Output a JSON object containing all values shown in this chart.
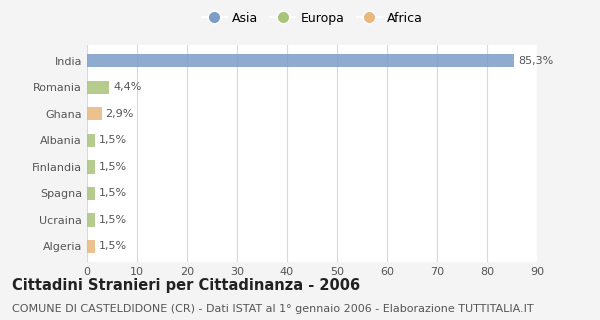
{
  "categories": [
    "India",
    "Romania",
    "Ghana",
    "Albania",
    "Finlandia",
    "Spagna",
    "Ucraina",
    "Algeria"
  ],
  "values": [
    85.3,
    4.4,
    2.9,
    1.5,
    1.5,
    1.5,
    1.5,
    1.5
  ],
  "labels": [
    "85,3%",
    "4,4%",
    "2,9%",
    "1,5%",
    "1,5%",
    "1,5%",
    "1,5%",
    "1,5%"
  ],
  "colors": [
    "#7b9dc7",
    "#a8c47a",
    "#e8b87c",
    "#a8c47a",
    "#a8c47a",
    "#a8c47a",
    "#a8c47a",
    "#e8b87c"
  ],
  "legend_labels": [
    "Asia",
    "Europa",
    "Africa"
  ],
  "legend_colors": [
    "#7b9dc7",
    "#a8c47a",
    "#e8b87c"
  ],
  "title": "Cittadini Stranieri per Cittadinanza - 2006",
  "subtitle": "COMUNE DI CASTELDIDONE (CR) - Dati ISTAT al 1° gennaio 2006 - Elaborazione TUTTITALIA.IT",
  "xlim": [
    0,
    90
  ],
  "xticks": [
    0,
    10,
    20,
    30,
    40,
    50,
    60,
    70,
    80,
    90
  ],
  "background_color": "#f4f4f4",
  "plot_bg_color": "#ffffff",
  "grid_color": "#d8d8d8",
  "bar_height": 0.5,
  "title_fontsize": 10.5,
  "subtitle_fontsize": 8,
  "label_fontsize": 8,
  "ytick_fontsize": 8,
  "xtick_fontsize": 8,
  "legend_fontsize": 9
}
